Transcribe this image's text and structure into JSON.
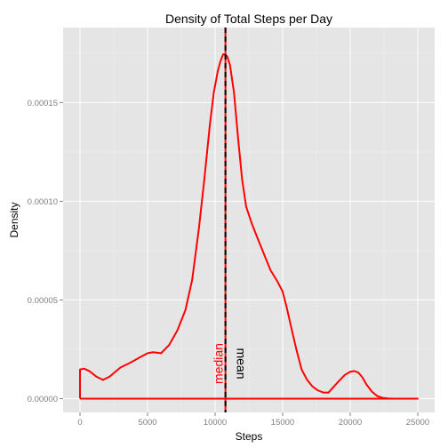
{
  "chart_data": {
    "type": "line",
    "title": "Density of Total Steps per Day",
    "xlabel": "Steps",
    "ylabel": "Density",
    "xlim": [
      -1250,
      26250
    ],
    "ylim": [
      -7e-06,
      0.000188
    ],
    "grid": true,
    "x_ticks": [
      0,
      5000,
      10000,
      15000,
      20000,
      25000
    ],
    "x_tick_labels": [
      "0",
      "5000",
      "10000",
      "15000",
      "20000",
      "25000"
    ],
    "y_ticks": [
      0.0,
      5e-05,
      0.0001,
      0.00015
    ],
    "y_tick_labels": [
      "0.00000",
      "0.00005",
      "0.00010",
      "0.00015"
    ],
    "series": [
      {
        "color": "#ff0000",
        "x": [
          0,
          0,
          300,
          700,
          1200,
          1700,
          2200,
          3000,
          3700,
          4400,
          5000,
          5400,
          6000,
          6600,
          7200,
          7800,
          8300,
          8800,
          9200,
          9600,
          9900,
          10200,
          10400,
          10600,
          10766,
          10900,
          11100,
          11400,
          11700,
          12000,
          12300,
          12700,
          13100,
          13600,
          14100,
          14600,
          15000,
          15300,
          15600,
          16000,
          16400,
          16800,
          17200,
          17600,
          18000,
          18400,
          18800,
          19200,
          19600,
          20000,
          20300,
          20600,
          20900,
          21200,
          21600,
          22000,
          22400,
          22800,
          23200,
          23800,
          24400,
          25000,
          25000
        ],
        "y": [
          0.0,
          1.48e-05,
          1.52e-05,
          1.39e-05,
          1.12e-05,
          9.5e-06,
          1.12e-05,
          1.58e-05,
          1.81e-05,
          2.08e-05,
          2.3e-05,
          2.35e-05,
          2.3e-05,
          2.72e-05,
          3.45e-05,
          4.48e-05,
          6.01e-05,
          8.62e-05,
          0.000111,
          0.000138,
          0.000155,
          0.000166,
          0.000171,
          0.0001745,
          0.0001742,
          0.0001733,
          0.000169,
          0.000155,
          0.000132,
          0.000111,
          9.72e-05,
          8.9e-05,
          8.2e-05,
          7.35e-05,
          6.51e-05,
          5.95e-05,
          5.42e-05,
          4.62e-05,
          3.71e-05,
          2.53e-05,
          1.48e-05,
          9.6e-06,
          6.2e-06,
          4.2e-06,
          3.1e-06,
          3.1e-06,
          6.2e-06,
          9.2e-06,
          1.2e-05,
          1.36e-05,
          1.4e-05,
          1.32e-05,
          1.08e-05,
          7.2e-06,
          3.6e-06,
          1.3e-06,
          4e-07,
          1e-07,
          0.0,
          0.0,
          0.0,
          0.0,
          0.0
        ]
      }
    ],
    "vlines": [
      {
        "x": 10766,
        "label": "mean",
        "color": "#000000",
        "dash": true
      },
      {
        "x": 10765,
        "label": "median",
        "color": "#ff0000",
        "dash": false
      }
    ]
  },
  "colors": {
    "panel_background": "#e5e5e5",
    "grid_major": "#ffffff",
    "grid_minor": "#f2f2f2",
    "tick_mark": "#7f7f7f"
  }
}
